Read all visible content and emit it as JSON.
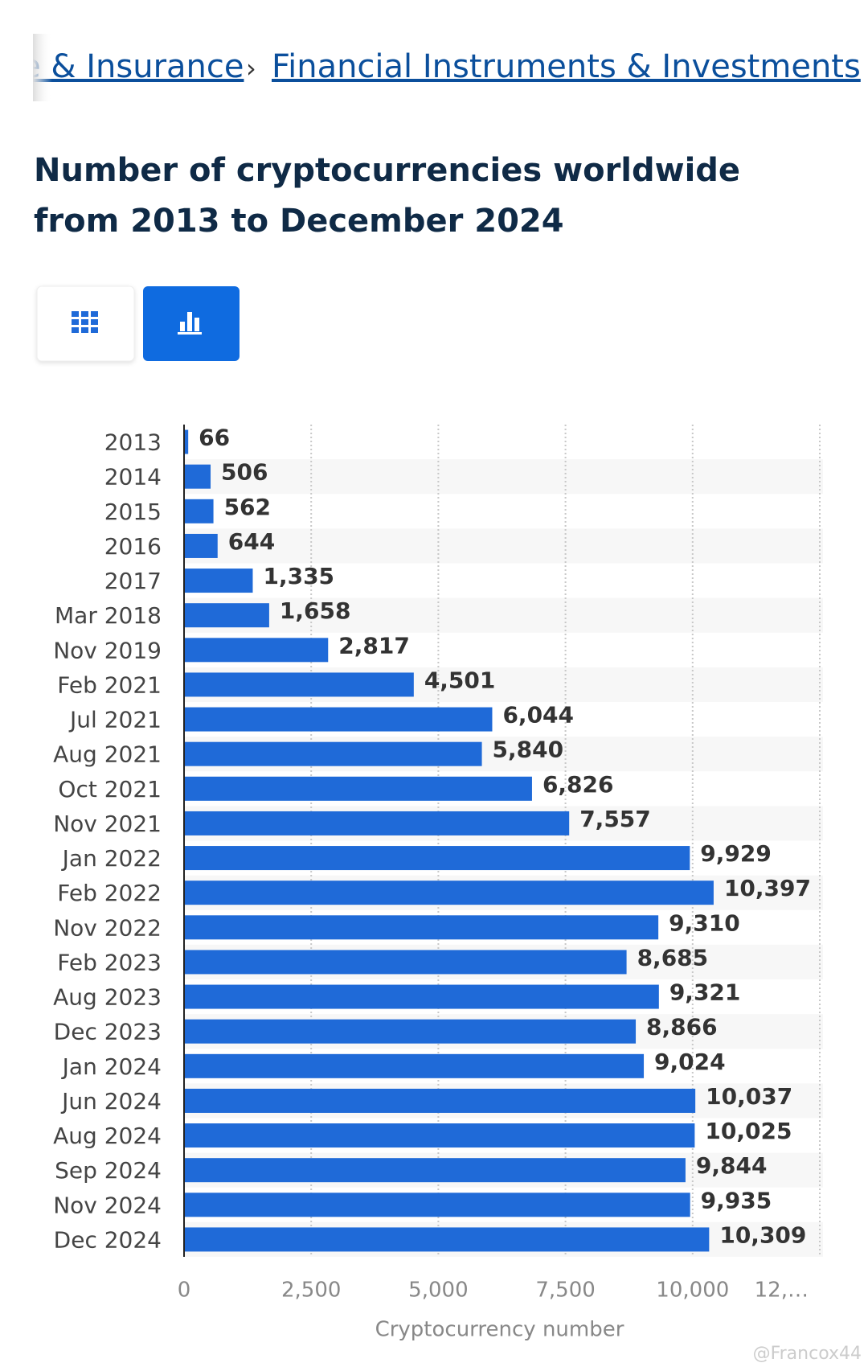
{
  "breadcrumb": {
    "items": [
      "e & Insurance",
      "Financial Instruments & Investments"
    ],
    "separator": "›"
  },
  "chart_data": {
    "type": "bar",
    "orientation": "horizontal",
    "title": "Number of cryptocurrencies worldwide from 2013 to December 2024",
    "categories": [
      "2013",
      "2014",
      "2015",
      "2016",
      "2017",
      "Mar 2018",
      "Nov 2019",
      "Feb 2021",
      "Jul 2021",
      "Aug 2021",
      "Oct 2021",
      "Nov 2021",
      "Jan 2022",
      "Feb 2022",
      "Nov 2022",
      "Feb 2023",
      "Aug 2023",
      "Dec 2023",
      "Jan 2024",
      "Jun 2024",
      "Aug 2024",
      "Sep 2024",
      "Nov 2024",
      "Dec 2024"
    ],
    "values": [
      66,
      506,
      562,
      644,
      1335,
      1658,
      2817,
      4501,
      6044,
      5840,
      6826,
      7557,
      9929,
      10397,
      9310,
      8685,
      9321,
      8866,
      9024,
      10037,
      10025,
      9844,
      9935,
      10309
    ],
    "value_labels": [
      "66",
      "506",
      "562",
      "644",
      "1,335",
      "1,658",
      "2,817",
      "4,501",
      "6,044",
      "5,840",
      "6,826",
      "7,557",
      "9,929",
      "10,397",
      "9,310",
      "8,685",
      "9,321",
      "8,866",
      "9,024",
      "10,037",
      "10,025",
      "9,844",
      "9,935",
      "10,309"
    ],
    "color": "#1f6ad8",
    "xlabel": "Cryptocurrency number",
    "xlim": [
      0,
      12500
    ],
    "xticks": [
      0,
      {
        "value": 2500,
        "label": "2,500"
      },
      {
        "value": 5000,
        "label": "5,000"
      },
      {
        "value": 7500,
        "label": "7,500"
      },
      {
        "value": 10000,
        "label": "10,000"
      },
      {
        "value": 12500,
        "label": "12,…"
      }
    ],
    "grid": true
  },
  "watermark": "@Francox44"
}
